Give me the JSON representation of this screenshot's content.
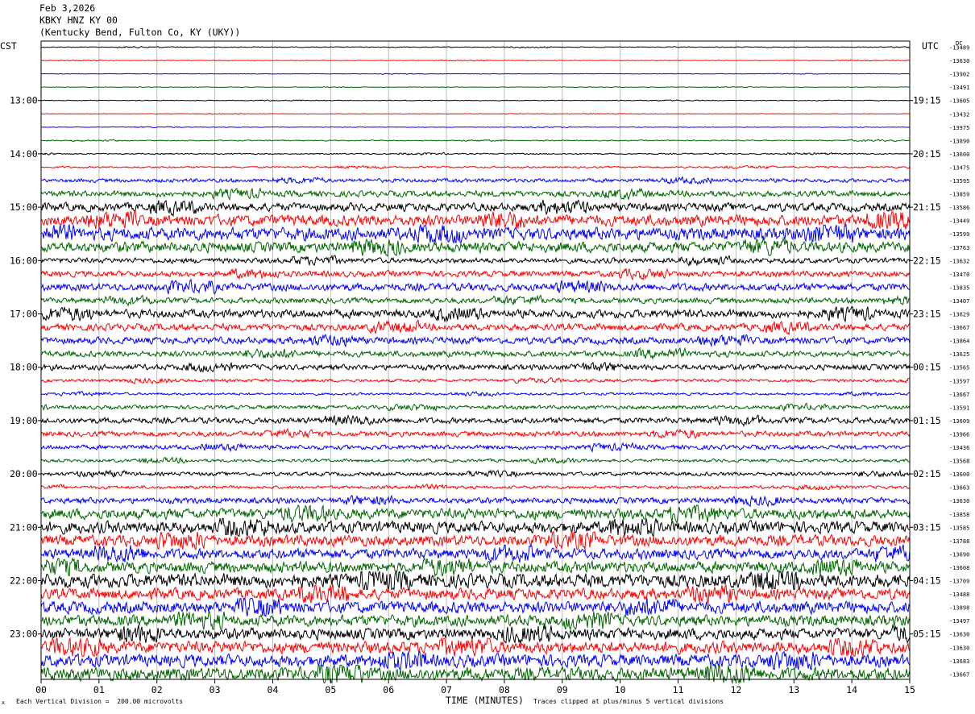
{
  "header": {
    "date": "Feb 3,2026",
    "station": "KBKY HNZ KY 00",
    "location": "(Kentucky Bend, Fulton Co, KY (UKY))"
  },
  "labels": {
    "left_timezone": "CST",
    "right_timezone": "UTC",
    "dc": "DC"
  },
  "footer": {
    "marker": "x",
    "scale": "Each Vertical Division =  200.00 microvolts",
    "xaxis_title": "TIME (MINUTES)",
    "clip_note": "Traces clipped at plus/minus 5 vertical divisions"
  },
  "colors": {
    "trace_cycle": [
      "#000000",
      "#ff0000",
      "#0000ff",
      "#006400"
    ],
    "grid": "#bbbbbb",
    "frame": "#000000"
  },
  "chart_data": {
    "type": "line",
    "title": "",
    "xlabel": "TIME (MINUTES)",
    "ylabel": "",
    "xlim": [
      0,
      15
    ],
    "x_ticks": [
      "00",
      "01",
      "02",
      "03",
      "04",
      "05",
      "06",
      "07",
      "08",
      "09",
      "10",
      "11",
      "12",
      "13",
      "14",
      "15"
    ],
    "grid": true,
    "rows_per_hour": 4,
    "row_count": 48,
    "left_hour_labels": [
      "13:00",
      "14:00",
      "15:00",
      "16:00",
      "17:00",
      "18:00",
      "19:00",
      "20:00",
      "21:00",
      "22:00",
      "23:00"
    ],
    "right_hour_labels": [
      "19:15",
      "20:15",
      "21:15",
      "22:15",
      "23:15",
      "00:15",
      "01:15",
      "02:15",
      "03:15",
      "04:15",
      "05:15"
    ],
    "hour_label_first_row": 4,
    "dc_offsets": [
      "-13489",
      "-13630",
      "-13902",
      "-13491",
      "-13605",
      "-13432",
      "-13975",
      "-13890",
      "-13600",
      "-13475",
      "-13595",
      "-13859",
      "-13586",
      "-13449",
      "-13599",
      "-13763",
      "-13632",
      "-13470",
      "-13835",
      "-13407",
      "-13629",
      "-13667",
      "-13864",
      "-13625",
      "-13565",
      "-13597",
      "-13667",
      "-13591",
      "-13609",
      "-13966",
      "-13436",
      "-13568",
      "-13600",
      "-13663",
      "-13630",
      "-13858",
      "-13585",
      "-13788",
      "-13690",
      "-13608",
      "-13709",
      "-13488",
      "-13898",
      "-13497",
      "-13630",
      "-13630",
      "-13683",
      "-13667"
    ],
    "noise_amplitude_divisions": [
      0.12,
      0.08,
      0.08,
      0.08,
      0.1,
      0.08,
      0.1,
      0.14,
      0.18,
      0.25,
      0.55,
      0.85,
      1.2,
      1.6,
      1.8,
      1.5,
      0.75,
      0.85,
      1.1,
      0.8,
      1.2,
      1.0,
      1.0,
      0.85,
      0.8,
      0.45,
      0.35,
      0.55,
      0.85,
      0.75,
      0.65,
      0.45,
      0.55,
      0.45,
      0.85,
      1.5,
      1.7,
      1.6,
      1.5,
      1.6,
      2.0,
      1.6,
      1.7,
      1.6,
      1.6,
      1.7,
      1.8,
      1.9
    ]
  }
}
